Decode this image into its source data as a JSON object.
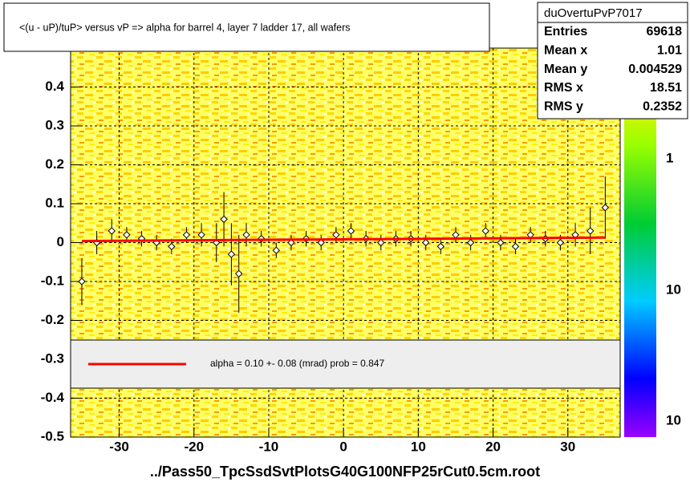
{
  "chart_data": {
    "type": "profile",
    "title": "<(u - uP)/tuP> versus   vP => alpha for barrel 4, layer 7 ladder 17, all wafers",
    "xlabel": "../Pass50_TpcSsdSvtPlotsG40G100NFP25rCut0.5cm.root",
    "xlim": [
      -36.5,
      37
    ],
    "ylim": [
      -0.5,
      0.5
    ],
    "xticks": [
      -30,
      -20,
      -10,
      0,
      10,
      20,
      30
    ],
    "yticks": [
      -0.5,
      -0.4,
      -0.3,
      -0.2,
      -0.1,
      0,
      0.1,
      0.2,
      0.3,
      0.4
    ],
    "grid": true,
    "series": [
      {
        "color": "#000000",
        "x": [
          -35,
          -33,
          -31,
          -29,
          -27,
          -25,
          -23,
          -21,
          -19,
          -17,
          -16,
          -15,
          -14,
          -13,
          -11,
          -9,
          -7,
          -5,
          -3,
          -1,
          1,
          3,
          5,
          7,
          9,
          11,
          13,
          15,
          17,
          19,
          21,
          23,
          25,
          27,
          29,
          31,
          33,
          35
        ],
        "values": [
          -0.1,
          0.0,
          0.03,
          0.02,
          0.01,
          0.0,
          -0.01,
          0.02,
          0.02,
          0.0,
          0.06,
          -0.03,
          -0.08,
          0.02,
          0.01,
          -0.02,
          0.0,
          0.01,
          0.0,
          0.02,
          0.03,
          0.01,
          0.0,
          0.01,
          0.01,
          0.0,
          -0.01,
          0.02,
          0.0,
          0.03,
          0.0,
          -0.01,
          0.02,
          0.01,
          0.0,
          0.02,
          0.03,
          0.09
        ],
        "errors": [
          0.06,
          0.03,
          0.03,
          0.02,
          0.02,
          0.02,
          0.02,
          0.02,
          0.03,
          0.05,
          0.07,
          0.08,
          0.1,
          0.03,
          0.02,
          0.02,
          0.02,
          0.02,
          0.02,
          0.02,
          0.02,
          0.02,
          0.02,
          0.02,
          0.02,
          0.02,
          0.02,
          0.02,
          0.02,
          0.02,
          0.02,
          0.02,
          0.02,
          0.02,
          0.02,
          0.03,
          0.06,
          0.08
        ]
      }
    ],
    "fit": {
      "color": "#ff0000",
      "x": [
        -35,
        35
      ],
      "values": [
        0.004,
        0.013
      ],
      "label": "alpha =    0.10 +-  0.08 (mrad) prob = 0.847"
    },
    "colorbar": {
      "labels": [
        "1",
        "10",
        "10"
      ]
    },
    "stats": {
      "name": "duOvertuPvP7017",
      "rows": [
        [
          "Entries",
          "69618"
        ],
        [
          "Mean x",
          "1.01"
        ],
        [
          "Mean y",
          "0.004529"
        ],
        [
          "RMS x",
          "18.51"
        ],
        [
          "RMS y",
          "0.2352"
        ]
      ]
    }
  }
}
